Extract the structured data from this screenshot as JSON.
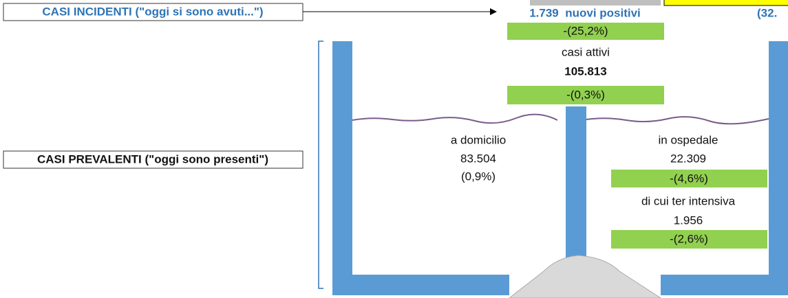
{
  "labels": {
    "incident_box": "CASI INCIDENTI (\"oggi si sono avuti...\")",
    "prevalent_box": "CASI PREVALENTI (\"oggi sono presenti\")",
    "new_positives": "1.739  nuovi positivi",
    "new_positives_change": "-(25,2%)",
    "truncated_right": "(32.",
    "active_title": "casi attivi",
    "active_value": "105.813",
    "active_change": "-(0,3%)",
    "home_title": "a domicilio",
    "home_value": "83.504",
    "home_change": "(0,9%)",
    "hospital_title": "in ospedale",
    "hospital_value": "22.309",
    "hospital_change": "-(4,6%)",
    "icu_title": "di cui ter intensiva",
    "icu_value": "1.956",
    "icu_change": "-(2,6%)"
  }
}
